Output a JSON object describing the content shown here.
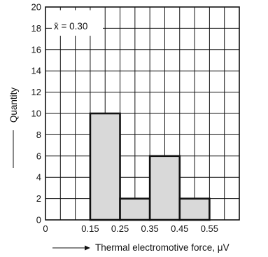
{
  "chart_data": {
    "type": "bar",
    "bins": [
      {
        "start": 0.15,
        "end": 0.25,
        "value": 10
      },
      {
        "start": 0.25,
        "end": 0.35,
        "value": 2
      },
      {
        "start": 0.35,
        "end": 0.45,
        "value": 6
      },
      {
        "start": 0.45,
        "end": 0.55,
        "value": 2
      }
    ],
    "xlabel": "Thermal electromotive force, μV",
    "ylabel": "Quantity",
    "xlim": [
      0,
      0.65
    ],
    "ylim": [
      0,
      20
    ],
    "x_ticks": [
      "0",
      "0.15",
      "0.25",
      "0.35",
      "0.45",
      "0.55"
    ],
    "x_tick_values": [
      0,
      0.15,
      0.25,
      0.35,
      0.45,
      0.55
    ],
    "y_ticks": [
      "0",
      "2",
      "4",
      "6",
      "8",
      "10",
      "12",
      "14",
      "16",
      "18",
      "20"
    ],
    "y_tick_values": [
      0,
      2,
      4,
      6,
      8,
      10,
      12,
      14,
      16,
      18,
      20
    ],
    "grid": true,
    "annotation": "x̄ = 0.30",
    "colors": {
      "bar_fill": "#d9d9d9",
      "bar_edge": "#111111",
      "grid": "#111111"
    }
  }
}
